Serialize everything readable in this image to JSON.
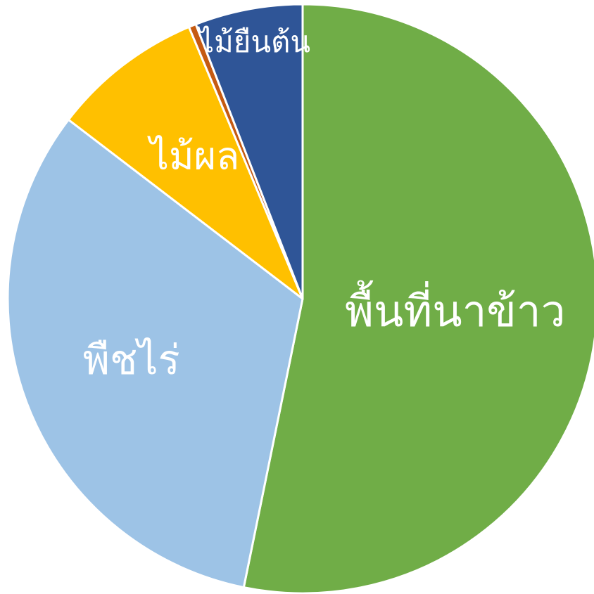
{
  "chart_data": {
    "type": "pie",
    "categories": [
      "พื้นที่นาข้าว",
      "พืชไร่",
      "ไม้ผล",
      null,
      "ไม้ยืนต้น"
    ],
    "values": [
      53.2,
      32.2,
      8.3,
      0.4,
      5.9
    ],
    "colors": [
      "#70ad47",
      "#9dc3e6",
      "#ffc000",
      "#c55a11",
      "#2f5597"
    ],
    "start_angle": 0,
    "direction": "clockwise"
  }
}
